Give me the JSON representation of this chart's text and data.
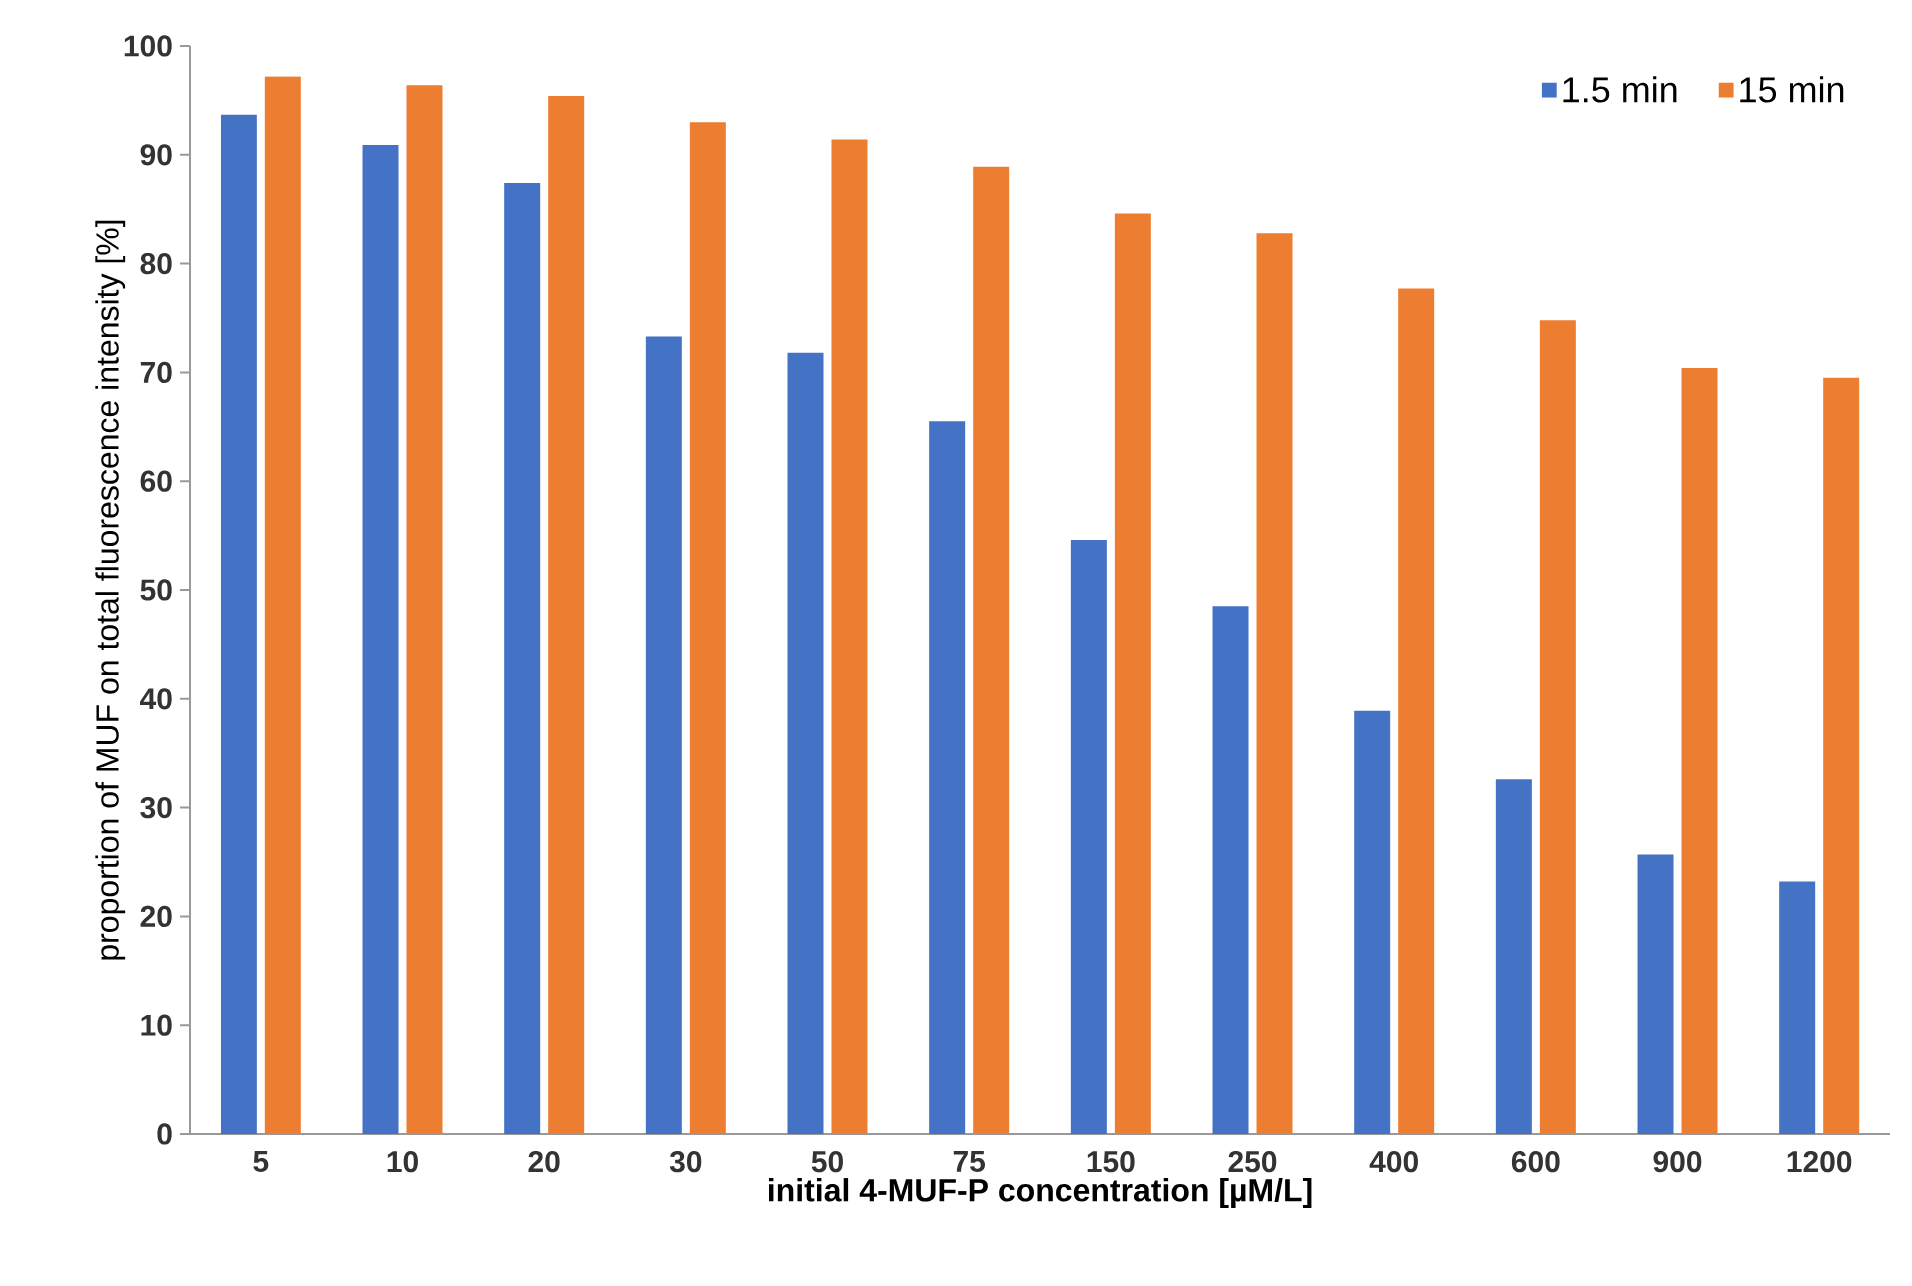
{
  "chart_data": {
    "type": "bar",
    "xlabel": "initial 4-MUF-P concentration [µM/L]",
    "ylabel": "proportion of MUF on total fluorescence intensity [%]",
    "categories": [
      "5",
      "10",
      "20",
      "30",
      "50",
      "75",
      "150",
      "250",
      "400",
      "600",
      "900",
      "1200"
    ],
    "series": [
      {
        "name": "1.5 min",
        "color": "#4472c4",
        "values": [
          93.7,
          90.9,
          87.4,
          73.3,
          71.8,
          65.5,
          54.6,
          48.5,
          38.9,
          32.6,
          25.7,
          23.2
        ]
      },
      {
        "name": "15 min",
        "color": "#ed7d31",
        "values": [
          97.2,
          96.4,
          95.4,
          93.0,
          91.4,
          88.9,
          84.6,
          82.8,
          77.7,
          74.8,
          70.4,
          69.5
        ]
      }
    ],
    "ylim": [
      0,
      100
    ],
    "yticks": [
      0,
      10,
      20,
      30,
      40,
      50,
      60,
      70,
      80,
      90,
      100
    ],
    "legend": "top right"
  }
}
